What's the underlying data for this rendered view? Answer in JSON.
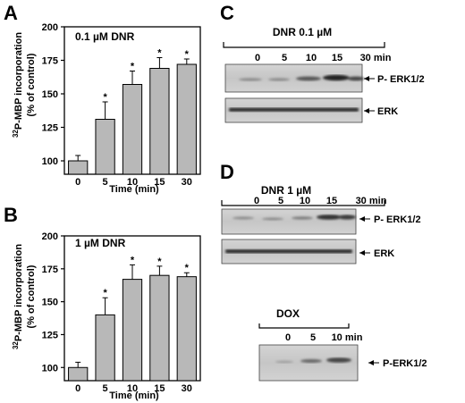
{
  "panels": {
    "a": "A",
    "b": "B",
    "c": "C",
    "d": "D"
  },
  "chart_data": [
    {
      "type": "bar",
      "panel": "A",
      "title": "0.1 µM DNR",
      "ylabel": "32P-MBP incorporation (% of control)",
      "xlabel": "Time (min)",
      "categories": [
        "0",
        "5",
        "10",
        "15",
        "30"
      ],
      "values": [
        100,
        131,
        157,
        169,
        172
      ],
      "errors": [
        4,
        13,
        10,
        8,
        4
      ],
      "significant": [
        "",
        "*",
        "*",
        "*",
        "*"
      ],
      "ylim": [
        90,
        200
      ],
      "yticks": [
        "100",
        "125",
        "150",
        "175",
        "200"
      ]
    },
    {
      "type": "bar",
      "panel": "B",
      "title": "1 µM DNR",
      "ylabel": "32P-MBP incorporation (% of control)",
      "xlabel": "Time (min)",
      "categories": [
        "0",
        "5",
        "10",
        "15",
        "30"
      ],
      "values": [
        100,
        140,
        167,
        170,
        169
      ],
      "errors": [
        4,
        13,
        11,
        7,
        3
      ],
      "significant": [
        "",
        "*",
        "*",
        "*",
        "*"
      ],
      "ylim": [
        90,
        200
      ],
      "yticks": [
        "100",
        "125",
        "150",
        "175",
        "200"
      ]
    }
  ],
  "blots": {
    "c": {
      "header": "DNR 0.1 µM",
      "times": [
        "0",
        "5",
        "10",
        "15",
        "30 min"
      ],
      "rows": [
        "P- ERK1/2",
        "ERK"
      ]
    },
    "d": {
      "header": "DNR 1 µM",
      "times": [
        "0",
        "5",
        "10",
        "15",
        "30 min"
      ],
      "rows": [
        "P- ERK1/2",
        "ERK"
      ]
    },
    "dox": {
      "header": "DOX",
      "times": [
        "0",
        "5",
        "10 min"
      ],
      "rows": [
        "P-ERK1/2"
      ]
    }
  }
}
